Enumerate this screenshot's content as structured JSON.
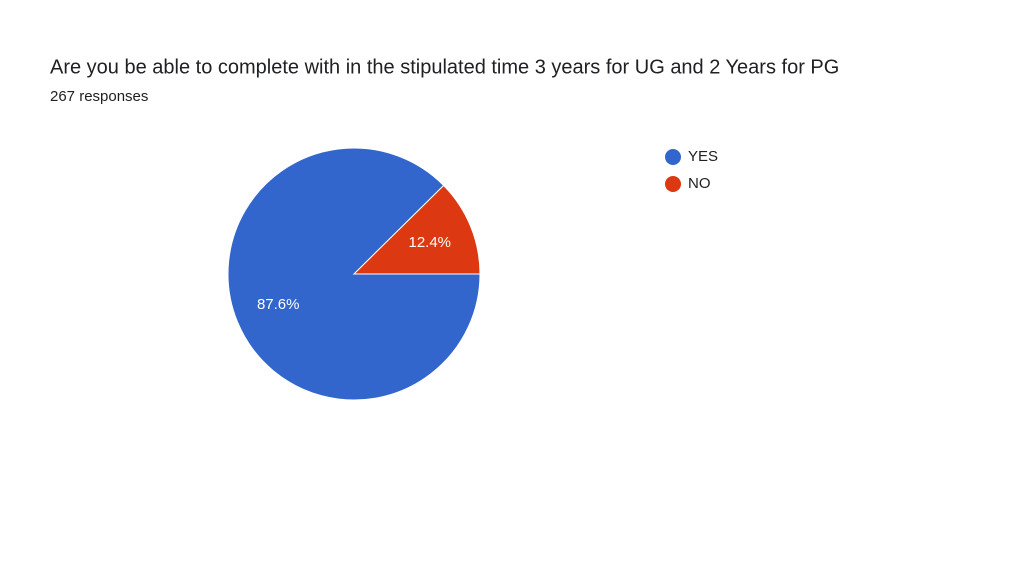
{
  "chart_data": {
    "type": "pie",
    "title": "Are you be able to complete with in the stipulated time 3 years for UG and 2 Years for PG",
    "subtitle": "267 responses",
    "categories": [
      "YES",
      "NO"
    ],
    "values": [
      87.6,
      12.4
    ],
    "value_labels": [
      "87.6%",
      "12.4%"
    ],
    "colors": [
      "#3366cc",
      "#dc3912"
    ],
    "legend": "right"
  }
}
